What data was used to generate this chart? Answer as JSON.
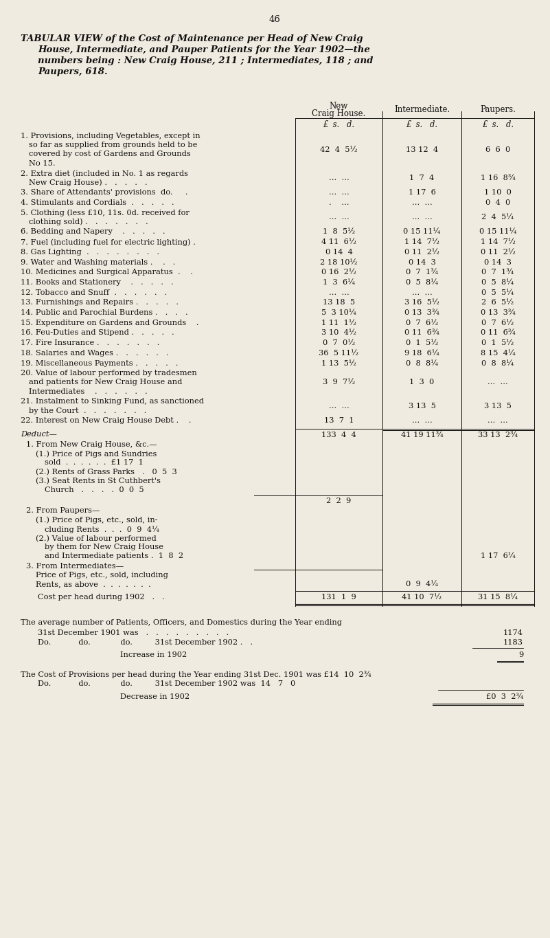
{
  "page_number": "46",
  "bg_color": "#f0ebe0",
  "title_line1": "TABULAR VIEW of the Cost of Maintenance per Head of New Craig",
  "title_line2": "House, Intermediate, and Pauper Patients for the Year 1902—the",
  "title_line3": "numbers being : New Craig House, 211 ; Intermediates, 118 ; and",
  "title_line4": "Paupers, 618.",
  "col_header1a": "New",
  "col_header1b": "Craig House.",
  "col_header2": "Intermediate.",
  "col_header3": "Paupers.",
  "subheader": "£  s.   d.",
  "rows": [
    [
      "1. Provisions, including Vegetables, except in",
      "so far as supplied from grounds held to be",
      "covered by cost of Gardens and Grounds",
      "No 15.",
      "42  4  5½",
      "13 12  4",
      "6  6  0"
    ],
    [
      "2. Extra diet (included in No. 1 as regards",
      "New Craig House) .   .   .   .   .",
      "",
      "",
      "...  ...",
      "1  7  4",
      "1 16  8¾"
    ],
    [
      "3. Share of Attendants' provisions  do.     .",
      "",
      "",
      "",
      "...  ...",
      "1 17  6",
      "1 10  0"
    ],
    [
      "4. Stimulants and Cordials  .   .   .   .   .",
      "",
      "",
      "",
      ".    ...",
      "...  ...",
      "0  4  0"
    ],
    [
      "5. Clothing (less £10, 11s. 0d. received for",
      "clothing sold) .   .   .   .   .   .   .",
      "",
      "",
      "...  ...",
      "...  ...",
      "2  4  5¼"
    ],
    [
      "6. Bedding and Napery    .   .   .   .   .",
      "",
      "",
      "",
      "1  8  5½",
      "0 15 11¼",
      "0 15 11¼"
    ],
    [
      "7. Fuel (including fuel for electric lighting) .",
      "",
      "",
      "",
      "4 11  6½",
      "1 14  7½",
      "1 14  7½"
    ],
    [
      "8. Gas Lighting  .   .   .   .   .   .   .   .",
      "",
      "",
      "",
      "0 14  4",
      "0 11  2½",
      "0 11  2½"
    ],
    [
      "9. Water and Washing materials .    .   .",
      "",
      "",
      "",
      "2 18 10½",
      "0 14  3",
      "0 14  3"
    ],
    [
      "10. Medicines and Surgical Apparatus  .    .",
      "",
      "",
      "",
      "0 16  2½",
      "0  7  1¾",
      "0  7  1¾"
    ],
    [
      "11. Books and Stationery    .   .   .   .   .",
      "",
      "",
      "",
      "1  3  6¼",
      "0  5  8¼",
      "0  5  8¼"
    ],
    [
      "12. Tobacco and Snuff  .   .   .   .   .   .",
      "",
      "",
      "",
      "...  ...",
      "...  ...",
      "0  5  5¼"
    ],
    [
      "13. Furnishings and Repairs .   .   .   .   .",
      "",
      "",
      "",
      "13 18  5",
      "3 16  5½",
      "2  6  5½"
    ],
    [
      "14. Public and Parochial Burdens .   .   .   .",
      "",
      "",
      "",
      "5  3 10¼",
      "0 13  3¾",
      "0 13  3¾"
    ],
    [
      "15. Expenditure on Gardens and Grounds    .",
      "",
      "",
      "",
      "1 11  1½",
      "0  7  6½",
      "0  7  6½"
    ],
    [
      "16. Feu-Duties and Stipend .   .   .   .   .",
      "",
      "",
      "",
      "3 10  4½",
      "0 11  6¾",
      "0 11  6¾"
    ],
    [
      "17. Fire Insurance .   .   .   .   .   .   .",
      "",
      "",
      "",
      "0  7  0½",
      "0  1  5½",
      "0  1  5½"
    ],
    [
      "18. Salaries and Wages .   .   .   .   .   .",
      "",
      "",
      "",
      "36  5 11½",
      "9 18  6¼",
      "8 15  4¼"
    ],
    [
      "19. Miscellaneous Payments .   .   .   .   .",
      "",
      "",
      "",
      "1 13  5½",
      "0  8  8¼",
      "0  8  8¼"
    ],
    [
      "20. Value of labour performed by tradesmen",
      "and patients for New Craig House and",
      "Intermediates    .   .   .   .   .   .",
      "",
      "3  9  7½",
      "1  3  0",
      "...  ..."
    ],
    [
      "21. Instalment to Sinking Fund, as sanctioned",
      "by the Court  .   .   .   .   .   .   .",
      "",
      "",
      "...  ...",
      "3 13  5",
      "3 13  5"
    ],
    [
      "22. Interest on New Craig House Debt .    .",
      "",
      "",
      "",
      "13  7  1",
      "...  ...",
      "...  ..."
    ]
  ],
  "row_line_counts": [
    4,
    2,
    1,
    1,
    2,
    1,
    1,
    1,
    1,
    1,
    1,
    1,
    1,
    1,
    1,
    1,
    1,
    1,
    1,
    3,
    2,
    1
  ],
  "subtotals": [
    "133  4  4",
    "41 19 11¾",
    "33 13  2¾"
  ],
  "deduct_label": "Deduct—",
  "totals": [
    "131  1  9",
    "41 10  7½",
    "31 15  8¼"
  ],
  "total_label": "Cost per head during 1902   .   .",
  "footer1": "The average number of Patients, Officers, and Domestics during the Year ending",
  "footer2a": "31st December 1901 was   .   .   .   .   .   .   .   .   .",
  "footer2b": "1174",
  "footer3a": "Do.           do.            do.         31st December 1902 .   .",
  "footer3b": "1183",
  "footer4": "Increase in 1902",
  "footer4b": "9",
  "footer5": "The Cost of Provisions per head during the Year ending 31st Dec. 1901 was £14  10  2¾",
  "footer6a": "Do.           do.            do.         31st December 1902 was  14   7   0",
  "footer7": "Decrease in 1902",
  "footer7b": "£0  3  2¾"
}
